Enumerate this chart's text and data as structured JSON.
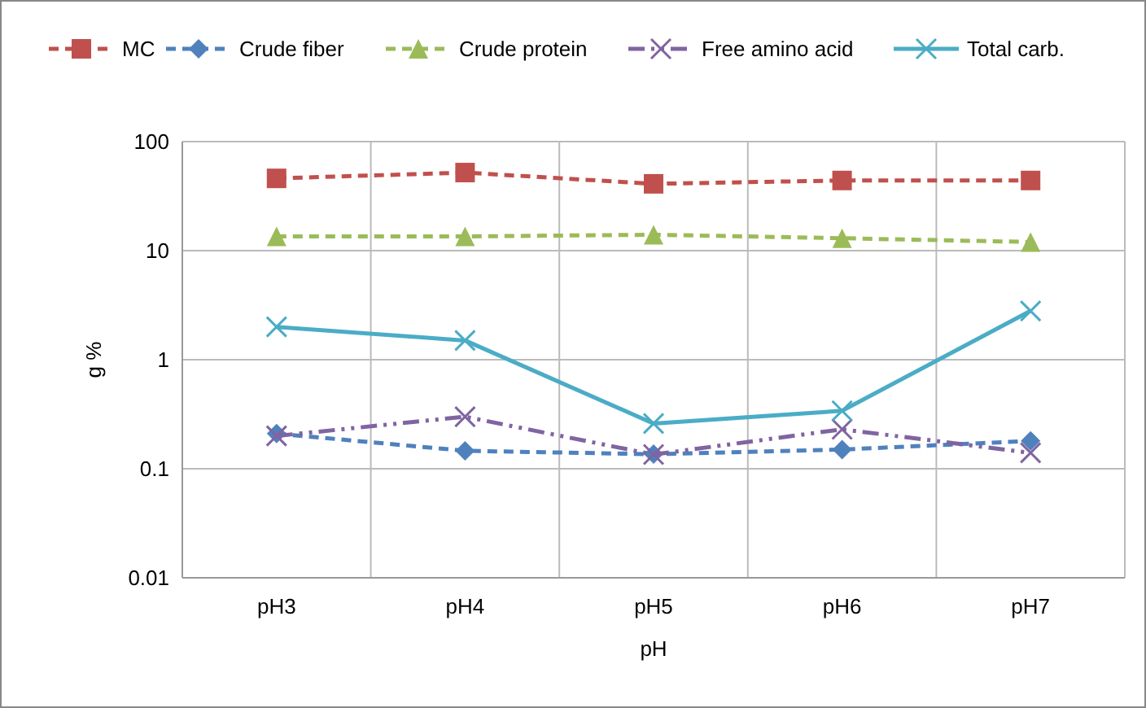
{
  "chart_data": {
    "type": "line",
    "xlabel": "pH",
    "ylabel": "g %",
    "categories": [
      "pH3",
      "pH4",
      "pH5",
      "pH6",
      "pH7"
    ],
    "log": "y",
    "ylim": [
      0.01,
      100
    ],
    "yticks": [
      0.01,
      0.1,
      1,
      10,
      100
    ],
    "grid": true,
    "legend": "top",
    "series": [
      {
        "name": "MC",
        "color": "#c0504d",
        "values": [
          46,
          52,
          41,
          44,
          44
        ],
        "marker": "square",
        "line_style": "dashed"
      },
      {
        "name": "Crude fiber",
        "color": "#4f81bd",
        "values": [
          0.21,
          0.146,
          0.136,
          0.15,
          0.18
        ],
        "marker": "diamond",
        "line_style": "dashed"
      },
      {
        "name": "Crude protein",
        "color": "#9bbb59",
        "values": [
          13.5,
          13.5,
          14,
          13,
          12
        ],
        "marker": "triangle",
        "line_style": "dashed"
      },
      {
        "name": "Free amino acid",
        "color": "#8064a2",
        "values": [
          0.2,
          0.3,
          0.135,
          0.23,
          0.14
        ],
        "marker": "cross",
        "line_style": "dotted"
      },
      {
        "name": "Total carb.",
        "color": "#4bacc6",
        "values": [
          2.0,
          1.5,
          0.26,
          0.34,
          2.8
        ],
        "marker": "cross",
        "line_style": "solid"
      }
    ]
  }
}
